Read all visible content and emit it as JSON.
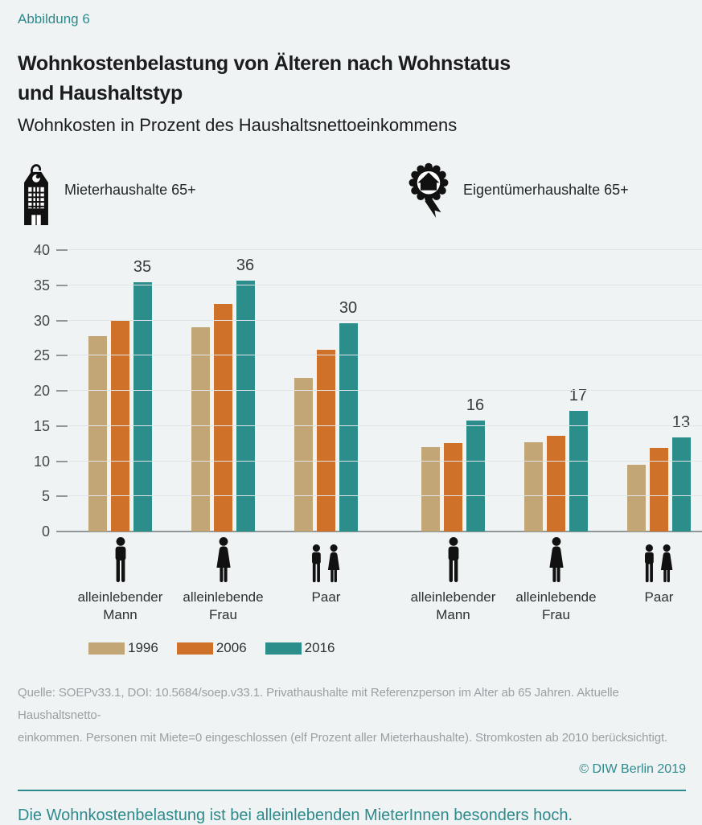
{
  "figure": {
    "kicker": "Abbildung 6",
    "title": "Wohnkostenbelastung von Älteren nach Wohnstatus\nund Haushaltstyp",
    "subtitle": "Wohnkosten in Prozent des Haushaltsnettoeinkommens",
    "badges": [
      {
        "icon": "renter-tag-icon",
        "label": "Mieterhaushalte 65+"
      },
      {
        "icon": "owner-badge-icon",
        "label": "Eigentümerhaushalte 65+"
      }
    ],
    "source": "Quelle: SOEPv33.1, DOI: 10.5684/soep.v33.1. Privathaushalte mit Referenzperson im Alter ab 65 Jahren. Aktuelle Haushaltsnetto-\neinkommen. Personen mit Miete=0 eingeschlossen (elf Prozent aller Mieterhaushalte). Stromkosten ab 2010 berücksichtigt.",
    "copyright": "© DIW Berlin 2019",
    "caption": "Die Wohnkostenbelastung ist bei alleinlebenden MieterInnen besonders hoch."
  },
  "colors": {
    "accent_teal": "#2e8a8c",
    "background": "#f0f3f4",
    "series_1996": "#c3a675",
    "series_2006": "#d0712a",
    "series_2016": "#2b8e8a"
  },
  "chart_data": {
    "type": "bar",
    "title": "Wohnkostenbelastung von Älteren nach Wohnstatus und Haushaltstyp",
    "ylabel": "Wohnkosten in Prozent des Haushaltsnettoeinkommens",
    "xlabel": "",
    "ylim": [
      0,
      40
    ],
    "yticks": [
      0,
      5,
      10,
      15,
      20,
      25,
      30,
      35,
      40
    ],
    "grid": true,
    "legend_position": "bottom",
    "series_names": [
      "1996",
      "2006",
      "2016"
    ],
    "series_colors": [
      "#c3a675",
      "#d0712a",
      "#2b8e8a"
    ],
    "clusters": [
      {
        "name": "Mieterhaushalte 65+",
        "groups": [
          {
            "label": "alleinlebender\nMann",
            "icon": "man",
            "values": [
              27.8,
              30.0,
              35.4
            ],
            "value_label": "35"
          },
          {
            "label": "alleinlebende\nFrau",
            "icon": "woman",
            "values": [
              29.0,
              32.3,
              35.7
            ],
            "value_label": "36"
          },
          {
            "label": "Paar",
            "icon": "pair",
            "values": [
              21.8,
              25.8,
              29.6
            ],
            "value_label": "30"
          }
        ]
      },
      {
        "name": "Eigentümerhaushalte 65+",
        "groups": [
          {
            "label": "alleinlebender\nMann",
            "icon": "man",
            "values": [
              12.0,
              12.6,
              15.8
            ],
            "value_label": "16"
          },
          {
            "label": "alleinlebende\nFrau",
            "icon": "woman",
            "values": [
              12.7,
              13.6,
              17.2
            ],
            "value_label": "17"
          },
          {
            "label": "Paar",
            "icon": "pair",
            "values": [
              9.5,
              11.9,
              13.4
            ],
            "value_label": "13"
          }
        ]
      }
    ]
  }
}
